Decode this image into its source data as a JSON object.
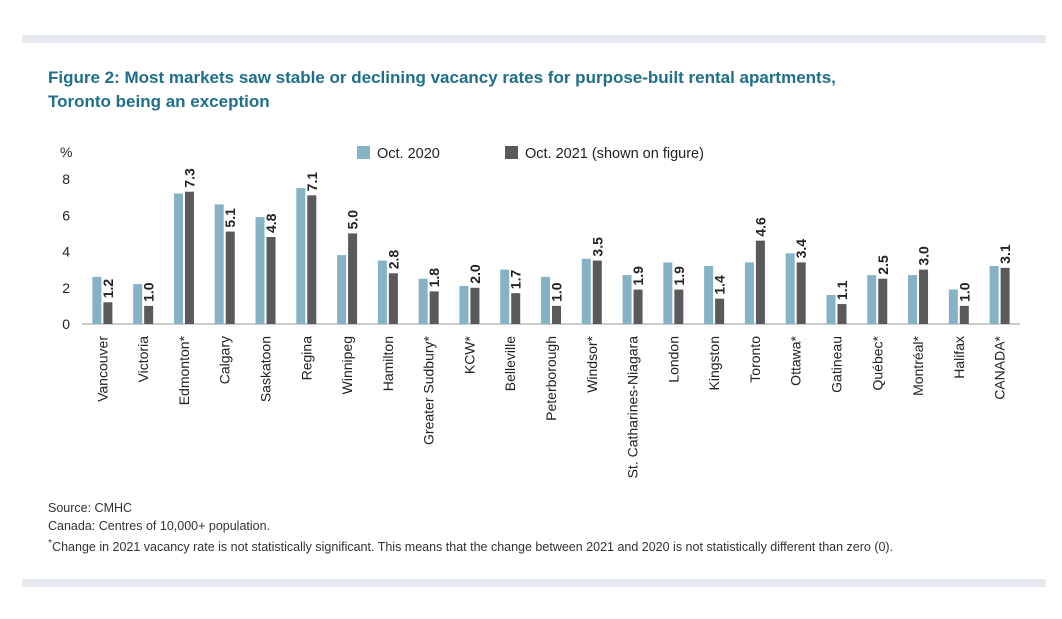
{
  "title": {
    "line1": "Figure 2: Most markets saw stable or declining vacancy rates for purpose-built rental apartments,",
    "line2": "Toronto being an exception"
  },
  "footnotes": {
    "source": "Source: CMHC",
    "canada": "Canada: Centres of 10,000+ population.",
    "significance_marker": "*",
    "significance": "Change in 2021 vacancy rate is not statistically significant. This means that the change between 2021 and 2020 is not statistically different than zero (0)."
  },
  "colors": {
    "oct2020": "#86b2c5",
    "oct2021": "#5a5a5c",
    "title": "#1f6f8b",
    "rule": "#e6e9f0"
  },
  "chart_data": {
    "type": "bar",
    "ylabel": "%",
    "ylim": [
      0,
      8
    ],
    "yticks": [
      0,
      2,
      4,
      6,
      8
    ],
    "grid": false,
    "legend_position": "top",
    "categories": [
      "Vancouver",
      "Victoria",
      "Edmonton*",
      "Calgary",
      "Saskatoon",
      "Regina",
      "Winnipeg",
      "Hamilton",
      "Greater Sudbury*",
      "KCW*",
      "Belleville",
      "Peterborough",
      "Windsor*",
      "St. Catharines-Niagara",
      "London",
      "Kingston",
      "Toronto",
      "Ottawa*",
      "Gatineau",
      "Québec*",
      "Montréal*",
      "Halifax",
      "CANADA*"
    ],
    "series": [
      {
        "name": "Oct. 2020",
        "values": [
          2.6,
          2.2,
          7.2,
          6.6,
          5.9,
          7.5,
          3.8,
          3.5,
          2.5,
          2.1,
          3.0,
          2.6,
          3.6,
          2.7,
          3.4,
          3.2,
          3.4,
          3.9,
          1.6,
          2.7,
          2.7,
          1.9,
          3.2
        ]
      },
      {
        "name": "Oct. 2021 (shown on figure)",
        "values": [
          1.2,
          1.0,
          7.3,
          5.1,
          4.8,
          7.1,
          5.0,
          2.8,
          1.8,
          2.0,
          1.7,
          1.0,
          3.5,
          1.9,
          1.9,
          1.4,
          4.6,
          3.4,
          1.1,
          2.5,
          3.0,
          1.0,
          3.1
        ]
      }
    ],
    "data_labels": [
      "1.2",
      "1.0",
      "7.3",
      "5.1",
      "4.8",
      "7.1",
      "5.0",
      "2.8",
      "1.8",
      "2.0",
      "1.7",
      "1.0",
      "3.5",
      "1.9",
      "1.9",
      "1.4",
      "4.6",
      "3.4",
      "1.1",
      "2.5",
      "3.0",
      "1.0",
      "3.1"
    ]
  }
}
